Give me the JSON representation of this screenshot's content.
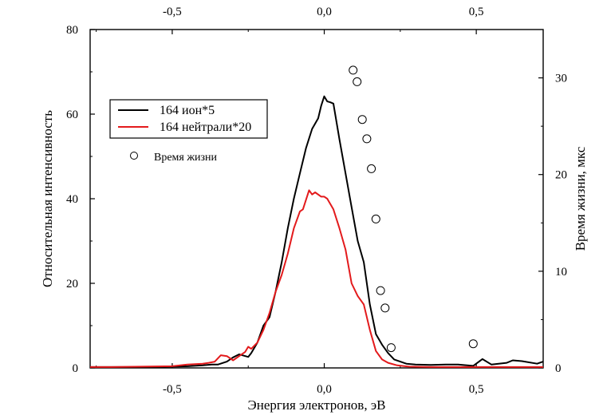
{
  "chart_data": {
    "type": "line",
    "xlabel": "Энергия электронов, эВ",
    "ylabel": "Относительная интенсивность",
    "y2label": "Время жизни, мкс",
    "xlim": [
      -0.77,
      0.72
    ],
    "ylim": [
      0,
      80
    ],
    "y2lim": [
      0,
      35
    ],
    "x_ticks": [
      -0.5,
      0.0,
      0.5
    ],
    "x_tick_labels": [
      "-0,5",
      "0,0",
      "0,5"
    ],
    "x2_tick_labels": [
      "-0,5",
      "0,0",
      "0,5"
    ],
    "y_ticks": [
      0,
      20,
      40,
      60,
      80
    ],
    "y_tick_labels": [
      "0",
      "20",
      "40",
      "60",
      "80"
    ],
    "y2_ticks": [
      0,
      10,
      20,
      30
    ],
    "y2_tick_labels": [
      "0",
      "10",
      "20",
      "30"
    ],
    "legend_position": "upper-left",
    "series": [
      {
        "name": "164 ион*5",
        "color": "#000000",
        "axis": "left",
        "style": "line",
        "x": [
          -0.77,
          -0.7,
          -0.6,
          -0.5,
          -0.45,
          -0.4,
          -0.37,
          -0.35,
          -0.32,
          -0.3,
          -0.28,
          -0.27,
          -0.25,
          -0.24,
          -0.22,
          -0.2,
          -0.18,
          -0.16,
          -0.14,
          -0.12,
          -0.1,
          -0.08,
          -0.06,
          -0.04,
          -0.02,
          -0.01,
          0.0,
          0.01,
          0.02,
          0.03,
          0.05,
          0.07,
          0.09,
          0.11,
          0.13,
          0.15,
          0.17,
          0.19,
          0.21,
          0.23,
          0.25,
          0.27,
          0.3,
          0.35,
          0.4,
          0.44,
          0.47,
          0.49,
          0.52,
          0.55,
          0.6,
          0.62,
          0.65,
          0.7,
          0.72
        ],
        "y": [
          0.2,
          0.2,
          0.2,
          0.3,
          0.4,
          0.6,
          0.8,
          0.8,
          1.5,
          2.5,
          3.2,
          3.0,
          2.6,
          3.5,
          6,
          10,
          12,
          18,
          25,
          33,
          40,
          46,
          52,
          56.5,
          59,
          62,
          64.2,
          63,
          62.8,
          62.5,
          54,
          46,
          38,
          30,
          25,
          15,
          8,
          5.5,
          3.5,
          2.0,
          1.5,
          1.0,
          0.8,
          0.7,
          0.8,
          0.8,
          0.6,
          0.5,
          2.1,
          0.8,
          1.2,
          1.8,
          1.6,
          1.0,
          1.5
        ]
      },
      {
        "name": "164 нейтрали*20",
        "color": "#e31a1c",
        "axis": "left",
        "style": "line",
        "x": [
          -0.77,
          -0.7,
          -0.6,
          -0.5,
          -0.45,
          -0.4,
          -0.38,
          -0.36,
          -0.34,
          -0.32,
          -0.3,
          -0.28,
          -0.26,
          -0.25,
          -0.24,
          -0.22,
          -0.2,
          -0.18,
          -0.16,
          -0.14,
          -0.12,
          -0.1,
          -0.08,
          -0.07,
          -0.05,
          -0.04,
          -0.03,
          -0.01,
          0.0,
          0.01,
          0.03,
          0.05,
          0.07,
          0.09,
          0.11,
          0.13,
          0.15,
          0.17,
          0.19,
          0.21,
          0.24,
          0.28,
          0.35,
          0.45,
          0.6,
          0.72
        ],
        "y": [
          0.2,
          0.2,
          0.3,
          0.4,
          0.8,
          1.0,
          1.2,
          1.5,
          3.0,
          2.8,
          1.8,
          2.8,
          3.8,
          5.0,
          4.5,
          6.0,
          9.0,
          13,
          18,
          22,
          27,
          33,
          37,
          37.5,
          42,
          41,
          41.5,
          40.5,
          40.5,
          40,
          37.5,
          33,
          28,
          20,
          17,
          15,
          9,
          4,
          2,
          1.2,
          0.6,
          0.3,
          0.2,
          0.2,
          0.2,
          0.2
        ]
      },
      {
        "name": "Время жизни",
        "color": "#000000",
        "axis": "right",
        "style": "scatter-open-circle",
        "x": [
          0.095,
          0.108,
          0.125,
          0.14,
          0.155,
          0.17,
          0.185,
          0.2,
          0.22,
          0.49
        ],
        "y": [
          30.8,
          29.6,
          25.7,
          23.7,
          20.6,
          15.4,
          8.0,
          6.2,
          2.1,
          2.5
        ]
      }
    ]
  }
}
